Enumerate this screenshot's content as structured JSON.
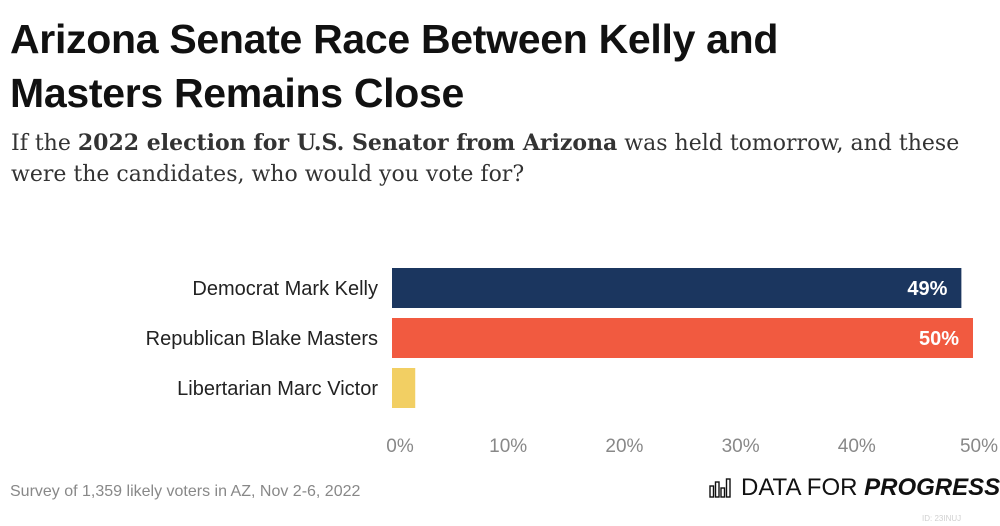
{
  "header": {
    "title": "Arizona Senate Race Between Kelly and Masters Remains Close",
    "subtitle_pre": "If the ",
    "subtitle_bold": "2022 election for U.S. Senator from Arizona",
    "subtitle_post": " was held tomorrow, and these were the candidates, who would you vote for?"
  },
  "chart_data": {
    "type": "bar",
    "orientation": "horizontal",
    "categories": [
      "Democrat Mark Kelly",
      "Republican Blake Masters",
      "Libertarian Marc Victor"
    ],
    "values": [
      49,
      50,
      2
    ],
    "data_labels": [
      "49%",
      "50%",
      ""
    ],
    "colors": [
      "#1b365f",
      "#f15a40",
      "#f2cf63"
    ],
    "xlim": [
      0,
      50
    ],
    "xticks": [
      0,
      10,
      20,
      30,
      40,
      50
    ],
    "xtick_labels": [
      "0%",
      "10%",
      "20%",
      "30%",
      "40%",
      "50%"
    ],
    "grid": false,
    "legend": "none"
  },
  "footer": {
    "note": "Survey of 1,359 likely voters in AZ, Nov 2-6, 2022",
    "brand_regular": "DATA FOR ",
    "brand_bold": "PROGRESS",
    "brand_icon": "bar-chart-icon",
    "image_id": "ID: 23INUJ"
  }
}
